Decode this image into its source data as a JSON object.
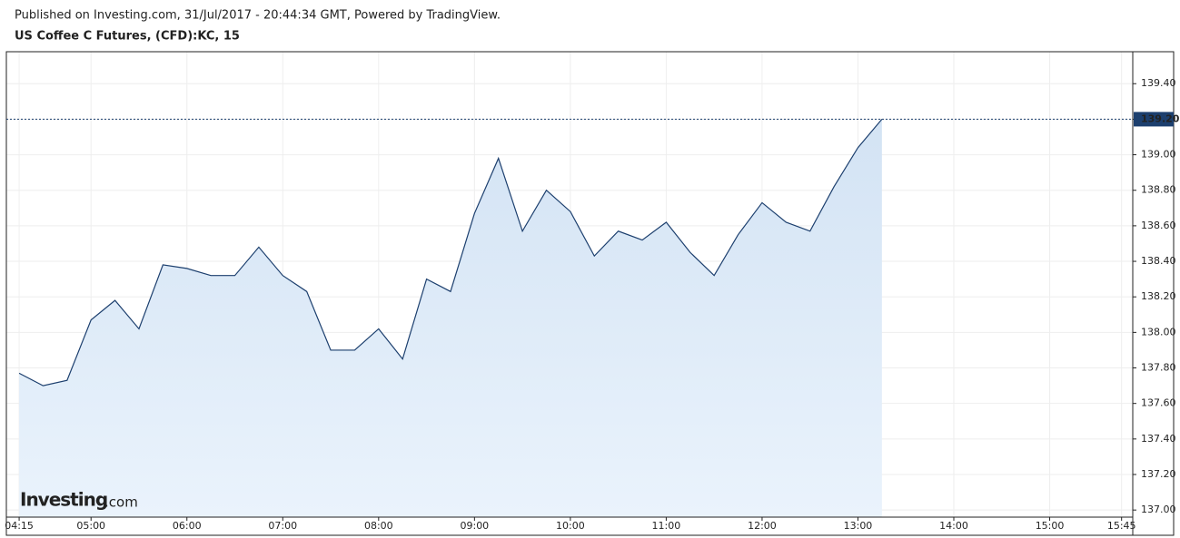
{
  "header": {
    "published": "Published on Investing.com, 31/Jul/2017 - 20:44:34 GMT, Powered by TradingView."
  },
  "chart_data": {
    "type": "area",
    "title": "US Coffee C Futures, (CFD):KC, 15",
    "x": [
      "04:15",
      "04:30",
      "04:45",
      "05:00",
      "05:15",
      "05:30",
      "05:45",
      "06:00",
      "06:15",
      "06:30",
      "06:45",
      "07:00",
      "07:15",
      "07:30",
      "07:45",
      "08:00",
      "08:15",
      "08:30",
      "08:45",
      "09:00",
      "09:15",
      "09:30",
      "09:45",
      "10:00",
      "10:15",
      "10:30",
      "10:45",
      "11:00",
      "11:15",
      "11:30",
      "11:45",
      "12:00",
      "12:15",
      "12:30",
      "12:45",
      "13:00",
      "13:15"
    ],
    "series": [
      {
        "color": "#1c3f6e",
        "values": [
          137.77,
          137.7,
          137.73,
          138.07,
          138.18,
          138.02,
          138.38,
          138.36,
          138.32,
          138.32,
          138.48,
          138.32,
          138.23,
          137.9,
          137.9,
          138.02,
          137.85,
          138.3,
          138.23,
          138.67,
          138.98,
          138.57,
          138.8,
          138.68,
          138.43,
          138.57,
          138.52,
          138.62,
          138.45,
          138.32,
          138.55,
          138.73,
          138.62,
          138.57,
          138.82,
          139.04,
          139.2
        ]
      }
    ],
    "xlim": [
      "04:07",
      "15:52"
    ],
    "xticks": [
      "04:15",
      "05:00",
      "06:00",
      "07:00",
      "08:00",
      "09:00",
      "10:00",
      "11:00",
      "12:00",
      "13:00",
      "14:00",
      "15:00",
      "15:45"
    ],
    "ylim": [
      136.96,
      139.58
    ],
    "yticks": [
      {
        "value": 137,
        "label": "137.00"
      },
      {
        "value": 137.2,
        "label": "137.20"
      },
      {
        "value": 137.4,
        "label": "137.40"
      },
      {
        "value": 137.6,
        "label": "137.60"
      },
      {
        "value": 137.8,
        "label": "137.80"
      },
      {
        "value": 138,
        "label": "138.00"
      },
      {
        "value": 138.2,
        "label": "138.20"
      },
      {
        "value": 138.4,
        "label": "138.40"
      },
      {
        "value": 138.6,
        "label": "138.60"
      },
      {
        "value": 138.8,
        "label": "138.80"
      },
      {
        "value": 139,
        "label": "139.00"
      },
      {
        "value": 139.2,
        "label": "139.20"
      },
      {
        "value": 139.4,
        "label": "139.40"
      }
    ],
    "last_price": {
      "value": 139.2,
      "label": "139.20"
    },
    "grid": true,
    "watermark": [
      "Investing",
      ".com"
    ]
  }
}
